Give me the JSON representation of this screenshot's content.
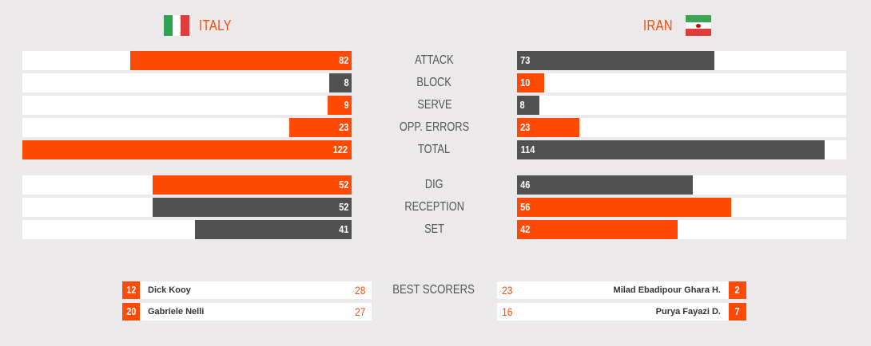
{
  "teams": {
    "left": {
      "name": "ITALY",
      "flag_icon": "italy-flag-icon"
    },
    "right": {
      "name": "IRAN",
      "flag_icon": "iran-flag-icon"
    }
  },
  "colors": {
    "orange": "#ff4a05",
    "gray": "#515151",
    "track": "#ffffff",
    "background": "#ebe9e9"
  },
  "chart_data": {
    "type": "bar",
    "categories": [
      "ATTACK",
      "BLOCK",
      "SERVE",
      "OPP. ERRORS",
      "TOTAL",
      "DIG",
      "RECEPTION",
      "SET"
    ],
    "series": [
      {
        "name": "ITALY",
        "values": [
          82,
          8,
          9,
          23,
          122,
          52,
          52,
          41
        ]
      },
      {
        "name": "IRAN",
        "values": [
          73,
          10,
          8,
          23,
          114,
          46,
          56,
          42
        ]
      }
    ],
    "groups": [
      {
        "stats": [
          "ATTACK",
          "BLOCK",
          "SERVE",
          "OPP. ERRORS",
          "TOTAL"
        ],
        "scale_max": 122
      },
      {
        "stats": [
          "DIG",
          "RECEPTION",
          "SET"
        ],
        "scale_max": 86
      }
    ]
  },
  "best_scorers": {
    "title": "BEST SCORERS",
    "left": [
      {
        "number": "12",
        "name": "Dick Kooy",
        "points": "28"
      },
      {
        "number": "20",
        "name": "Gabriele Nelli",
        "points": "27"
      }
    ],
    "right": [
      {
        "number": "2",
        "name": "Milad Ebadipour Ghara H.",
        "points": "23"
      },
      {
        "number": "7",
        "name": "Purya Fayazi D.",
        "points": "16"
      }
    ]
  }
}
